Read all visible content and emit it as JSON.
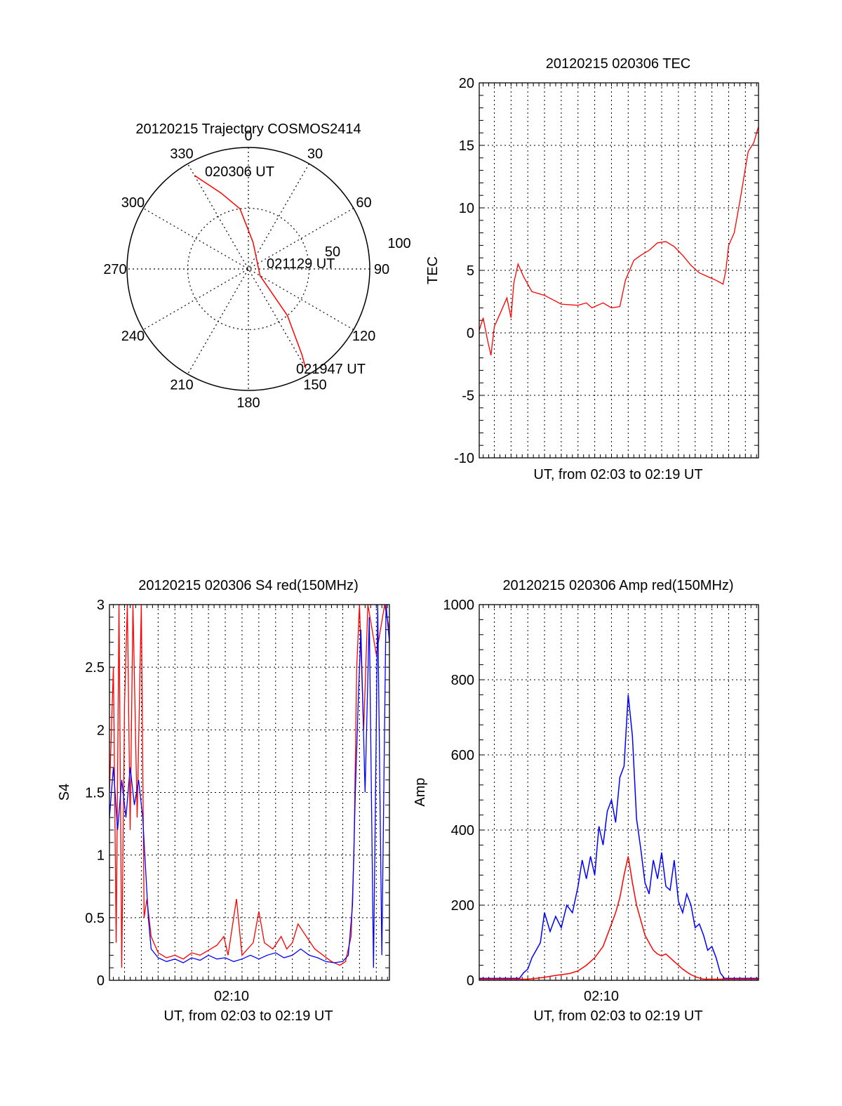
{
  "colors": {
    "red": "#ff0000",
    "blue": "#0000ff",
    "axis": "#000000",
    "grid": "#000000"
  },
  "chart_data": [
    {
      "id": "polar",
      "type": "scatter",
      "title": "20120215 Trajectory COSMOS2414",
      "projection": "polar-azimuth-elevation",
      "azimuth_labels": [
        "0",
        "30",
        "60",
        "90",
        "120",
        "150",
        "180",
        "210",
        "240",
        "270",
        "300",
        "330"
      ],
      "radius_labels": [
        "50",
        "100"
      ],
      "track": {
        "color": "red",
        "points": [
          [
            330,
            10
          ],
          [
            340,
            30
          ],
          [
            352,
            45
          ],
          [
            10,
            70
          ],
          [
            120,
            80
          ],
          [
            140,
            45
          ],
          [
            148,
            15
          ],
          [
            150,
            5
          ]
        ]
      },
      "annotations": [
        {
          "text": "020306 UT",
          "az": 335,
          "el": 2
        },
        {
          "text": "021129 UT",
          "az": 100,
          "el": 80
        },
        {
          "text": "021947 UT",
          "az": 150,
          "el": 0
        }
      ]
    },
    {
      "id": "tec",
      "type": "line",
      "title": "20120215 020306 TEC",
      "xlabel": "UT, from 02:03 to 02:19 UT",
      "ylabel": "TEC",
      "xlim": [
        "02:03:06",
        "02:19:47"
      ],
      "ylim": [
        -10,
        20
      ],
      "yticks": [
        -10,
        -5,
        0,
        5,
        10,
        15,
        20
      ],
      "grid": true,
      "series": [
        {
          "color": "red",
          "points": [
            [
              "02:03:06",
              0.2
            ],
            [
              "02:03:20",
              1.2
            ],
            [
              "02:03:35",
              -0.5
            ],
            [
              "02:03:48",
              -1.8
            ],
            [
              "02:04:00",
              0.5
            ],
            [
              "02:04:20",
              1.5
            ],
            [
              "02:04:45",
              2.8
            ],
            [
              "02:05:00",
              1.2
            ],
            [
              "02:05:10",
              4.0
            ],
            [
              "02:05:25",
              5.5
            ],
            [
              "02:05:45",
              4.5
            ],
            [
              "02:06:15",
              3.3
            ],
            [
              "02:07:00",
              3.0
            ],
            [
              "02:08:00",
              2.3
            ],
            [
              "02:09:00",
              2.2
            ],
            [
              "02:09:30",
              2.4
            ],
            [
              "02:09:50",
              2.0
            ],
            [
              "02:10:30",
              2.4
            ],
            [
              "02:11:00",
              2.0
            ],
            [
              "02:11:30",
              2.1
            ],
            [
              "02:11:50",
              4.2
            ],
            [
              "02:12:20",
              5.8
            ],
            [
              "02:12:45",
              6.2
            ],
            [
              "02:13:15",
              6.6
            ],
            [
              "02:13:45",
              7.2
            ],
            [
              "02:14:15",
              7.3
            ],
            [
              "02:14:45",
              6.9
            ],
            [
              "02:15:15",
              6.2
            ],
            [
              "02:15:45",
              5.4
            ],
            [
              "02:16:15",
              4.8
            ],
            [
              "02:16:45",
              4.5
            ],
            [
              "02:17:15",
              4.2
            ],
            [
              "02:17:40",
              3.9
            ],
            [
              "02:17:50",
              5.0
            ],
            [
              "02:18:00",
              7.0
            ],
            [
              "02:18:20",
              8.0
            ],
            [
              "02:18:40",
              10.5
            ],
            [
              "02:18:55",
              12.5
            ],
            [
              "02:19:10",
              14.5
            ],
            [
              "02:19:30",
              15.2
            ],
            [
              "02:19:47",
              16.5
            ]
          ]
        }
      ]
    },
    {
      "id": "s4",
      "type": "line",
      "title": "20120215 020306 S4 red(150MHz)",
      "xlabel": "UT, from 02:03 to 02:19 UT",
      "ylabel": "S4",
      "xtick_label": "02:10",
      "xlim": [
        "02:03:06",
        "02:19:47"
      ],
      "ylim": [
        0,
        3
      ],
      "yticks": [
        0,
        0.5,
        1,
        1.5,
        2,
        2.5,
        3
      ],
      "yticklabels": [
        "0",
        "0.5",
        "1",
        "1.5",
        "2",
        "2.5",
        "3"
      ],
      "grid": true,
      "series": [
        {
          "color": "red",
          "points": [
            [
              "02:03:06",
              1.5
            ],
            [
              "02:03:20",
              2.5
            ],
            [
              "02:03:30",
              0.3
            ],
            [
              "02:03:40",
              3.0
            ],
            [
              "02:03:50",
              0.1
            ],
            [
              "02:04:00",
              2.2
            ],
            [
              "02:04:10",
              3.0
            ],
            [
              "02:04:20",
              1.2
            ],
            [
              "02:04:30",
              3.0
            ],
            [
              "02:04:45",
              1.3
            ],
            [
              "02:05:00",
              3.0
            ],
            [
              "02:05:10",
              0.5
            ],
            [
              "02:05:20",
              0.65
            ],
            [
              "02:05:35",
              0.35
            ],
            [
              "02:06:00",
              0.22
            ],
            [
              "02:06:30",
              0.18
            ],
            [
              "02:07:00",
              0.2
            ],
            [
              "02:07:30",
              0.17
            ],
            [
              "02:08:00",
              0.22
            ],
            [
              "02:08:30",
              0.2
            ],
            [
              "02:09:00",
              0.24
            ],
            [
              "02:09:30",
              0.28
            ],
            [
              "02:09:55",
              0.35
            ],
            [
              "02:10:10",
              0.2
            ],
            [
              "02:10:40",
              0.65
            ],
            [
              "02:11:00",
              0.2
            ],
            [
              "02:11:40",
              0.3
            ],
            [
              "02:12:00",
              0.55
            ],
            [
              "02:12:20",
              0.3
            ],
            [
              "02:12:50",
              0.25
            ],
            [
              "02:13:20",
              0.35
            ],
            [
              "02:13:40",
              0.25
            ],
            [
              "02:14:00",
              0.3
            ],
            [
              "02:14:20",
              0.45
            ],
            [
              "02:14:50",
              0.35
            ],
            [
              "02:15:20",
              0.25
            ],
            [
              "02:15:50",
              0.2
            ],
            [
              "02:16:20",
              0.15
            ],
            [
              "02:16:50",
              0.12
            ],
            [
              "02:17:10",
              0.15
            ],
            [
              "02:17:30",
              0.35
            ],
            [
              "02:17:40",
              1.0
            ],
            [
              "02:17:50",
              2.5
            ],
            [
              "02:18:00",
              3.0
            ],
            [
              "02:18:15",
              2.0
            ],
            [
              "02:18:30",
              3.0
            ],
            [
              "02:19:00",
              2.6
            ],
            [
              "02:19:30",
              3.0
            ],
            [
              "02:19:47",
              2.8
            ]
          ]
        },
        {
          "color": "blue",
          "points": [
            [
              "02:03:06",
              1.3
            ],
            [
              "02:03:20",
              1.7
            ],
            [
              "02:03:35",
              1.2
            ],
            [
              "02:03:50",
              1.6
            ],
            [
              "02:04:05",
              1.3
            ],
            [
              "02:04:20",
              1.7
            ],
            [
              "02:04:35",
              1.4
            ],
            [
              "02:04:50",
              1.6
            ],
            [
              "02:05:05",
              1.3
            ],
            [
              "02:05:15",
              0.9
            ],
            [
              "02:05:25",
              0.5
            ],
            [
              "02:05:35",
              0.25
            ],
            [
              "02:06:00",
              0.18
            ],
            [
              "02:06:30",
              0.15
            ],
            [
              "02:07:00",
              0.17
            ],
            [
              "02:07:30",
              0.14
            ],
            [
              "02:08:00",
              0.18
            ],
            [
              "02:08:30",
              0.16
            ],
            [
              "02:09:00",
              0.2
            ],
            [
              "02:09:30",
              0.17
            ],
            [
              "02:10:00",
              0.18
            ],
            [
              "02:10:30",
              0.15
            ],
            [
              "02:11:00",
              0.17
            ],
            [
              "02:11:30",
              0.2
            ],
            [
              "02:12:00",
              0.17
            ],
            [
              "02:12:30",
              0.2
            ],
            [
              "02:13:00",
              0.22
            ],
            [
              "02:13:30",
              0.18
            ],
            [
              "02:14:00",
              0.2
            ],
            [
              "02:14:30",
              0.25
            ],
            [
              "02:15:00",
              0.2
            ],
            [
              "02:15:30",
              0.18
            ],
            [
              "02:16:00",
              0.15
            ],
            [
              "02:16:30",
              0.14
            ],
            [
              "02:17:00",
              0.15
            ],
            [
              "02:17:20",
              0.2
            ],
            [
              "02:17:35",
              0.6
            ],
            [
              "02:17:45",
              1.5
            ],
            [
              "02:17:55",
              2.2
            ],
            [
              "02:18:05",
              2.8
            ],
            [
              "02:18:20",
              1.5
            ],
            [
              "02:18:35",
              2.9
            ],
            [
              "02:18:50",
              0.1
            ],
            [
              "02:19:05",
              3.0
            ],
            [
              "02:19:20",
              0.2
            ],
            [
              "02:19:35",
              3.0
            ],
            [
              "02:19:47",
              2.7
            ]
          ]
        }
      ]
    },
    {
      "id": "amp",
      "type": "line",
      "title": "20120215 020306 Amp red(150MHz)",
      "xlabel": "UT, from 02:03 to 02:19 UT",
      "ylabel": "Amp",
      "xtick_label": "02:10",
      "xlim": [
        "02:03:06",
        "02:19:47"
      ],
      "ylim": [
        0,
        1000
      ],
      "yticks": [
        0,
        200,
        400,
        600,
        800,
        1000
      ],
      "grid": true,
      "series": [
        {
          "color": "blue",
          "points": [
            [
              "02:03:06",
              5
            ],
            [
              "02:05:30",
              5
            ],
            [
              "02:05:45",
              20
            ],
            [
              "02:06:00",
              30
            ],
            [
              "02:06:15",
              60
            ],
            [
              "02:06:30",
              80
            ],
            [
              "02:06:45",
              100
            ],
            [
              "02:07:00",
              180
            ],
            [
              "02:07:20",
              130
            ],
            [
              "02:07:40",
              170
            ],
            [
              "02:08:00",
              140
            ],
            [
              "02:08:20",
              200
            ],
            [
              "02:08:40",
              180
            ],
            [
              "02:09:00",
              250
            ],
            [
              "02:09:15",
              320
            ],
            [
              "02:09:30",
              270
            ],
            [
              "02:09:45",
              330
            ],
            [
              "02:10:00",
              280
            ],
            [
              "02:10:15",
              410
            ],
            [
              "02:10:30",
              360
            ],
            [
              "02:10:45",
              450
            ],
            [
              "02:11:00",
              480
            ],
            [
              "02:11:15",
              420
            ],
            [
              "02:11:30",
              540
            ],
            [
              "02:11:45",
              570
            ],
            [
              "02:12:00",
              760
            ],
            [
              "02:12:15",
              650
            ],
            [
              "02:12:30",
              430
            ],
            [
              "02:12:45",
              350
            ],
            [
              "02:13:00",
              260
            ],
            [
              "02:13:15",
              230
            ],
            [
              "02:13:30",
              320
            ],
            [
              "02:13:45",
              270
            ],
            [
              "02:14:00",
              340
            ],
            [
              "02:14:15",
              250
            ],
            [
              "02:14:30",
              240
            ],
            [
              "02:14:45",
              320
            ],
            [
              "02:15:00",
              210
            ],
            [
              "02:15:15",
              180
            ],
            [
              "02:15:30",
              230
            ],
            [
              "02:15:45",
              200
            ],
            [
              "02:16:00",
              140
            ],
            [
              "02:16:15",
              150
            ],
            [
              "02:16:30",
              120
            ],
            [
              "02:16:45",
              80
            ],
            [
              "02:17:00",
              90
            ],
            [
              "02:17:15",
              60
            ],
            [
              "02:17:30",
              20
            ],
            [
              "02:17:45",
              5
            ],
            [
              "02:19:47",
              5
            ]
          ]
        },
        {
          "color": "red",
          "points": [
            [
              "02:03:06",
              3
            ],
            [
              "02:06:00",
              3
            ],
            [
              "02:06:30",
              5
            ],
            [
              "02:07:00",
              8
            ],
            [
              "02:07:30",
              12
            ],
            [
              "02:08:00",
              15
            ],
            [
              "02:08:30",
              18
            ],
            [
              "02:09:00",
              25
            ],
            [
              "02:09:30",
              40
            ],
            [
              "02:10:00",
              60
            ],
            [
              "02:10:30",
              90
            ],
            [
              "02:10:45",
              120
            ],
            [
              "02:11:00",
              150
            ],
            [
              "02:11:15",
              180
            ],
            [
              "02:11:30",
              220
            ],
            [
              "02:11:45",
              280
            ],
            [
              "02:12:00",
              330
            ],
            [
              "02:12:15",
              260
            ],
            [
              "02:12:30",
              200
            ],
            [
              "02:12:45",
              160
            ],
            [
              "02:13:00",
              120
            ],
            [
              "02:13:15",
              100
            ],
            [
              "02:13:30",
              80
            ],
            [
              "02:13:45",
              70
            ],
            [
              "02:14:00",
              65
            ],
            [
              "02:14:15",
              70
            ],
            [
              "02:14:30",
              60
            ],
            [
              "02:14:45",
              50
            ],
            [
              "02:15:00",
              40
            ],
            [
              "02:15:15",
              30
            ],
            [
              "02:15:30",
              22
            ],
            [
              "02:15:45",
              15
            ],
            [
              "02:16:00",
              10
            ],
            [
              "02:16:15",
              6
            ],
            [
              "02:16:30",
              3
            ],
            [
              "02:19:47",
              3
            ]
          ]
        }
      ]
    }
  ]
}
